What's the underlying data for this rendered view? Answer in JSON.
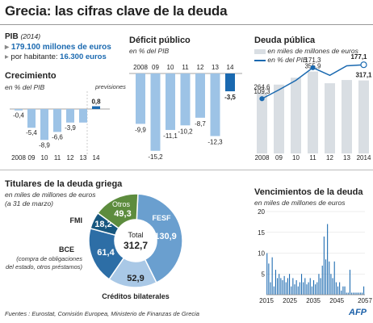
{
  "title": "Grecia: las cifras clave de la deuda",
  "pib": {
    "label": "PIB",
    "year": "(2014)",
    "line1": "179.100 millones de euros",
    "line2_prefix": "por habitante:",
    "line2_value": "16.300 euros"
  },
  "colors": {
    "bar": "#9dc3e6",
    "bar_dark": "#1a69b0",
    "grey": "#d9dee3",
    "line": "#1a69b0",
    "pie_fesf": "#6a9fcf",
    "pie_biz": "#a9c8e6",
    "pie_bce": "#2d6ea6",
    "pie_fmi": "#17577f",
    "pie_otros": "#5d8c3e",
    "pie_text": "#ffffff"
  },
  "chart_data": [
    {
      "type": "bar",
      "title": "Crecimiento",
      "subtitle": "en % del PIB",
      "note": "previsiones",
      "categories": [
        "2008",
        "09",
        "10",
        "11",
        "12",
        "13",
        "14"
      ],
      "values": [
        -0.4,
        -5.4,
        -8.9,
        -6.6,
        -3.9,
        -3.9,
        0.8
      ],
      "value_labels": [
        "-0,4",
        "-5,4",
        "-8,9",
        "-6,6",
        "-3,9",
        "",
        "0,8"
      ],
      "highlight_index": 6
    },
    {
      "type": "bar",
      "title": "Déficit público",
      "subtitle": "en % del PIB",
      "categories": [
        "2008",
        "09",
        "10",
        "11",
        "12",
        "13",
        "14"
      ],
      "values": [
        -9.9,
        -15.2,
        -11.1,
        -10.2,
        -8.7,
        -12.3,
        -3.5
      ],
      "value_labels": [
        "-9,9",
        "-15,2",
        "-11,1",
        "-10,2",
        "-8,7",
        "-12,3",
        "-3,5"
      ],
      "highlight_index": 6
    },
    {
      "type": "bar",
      "title": "Deuda pública",
      "legend": [
        "en miles de millones de euros",
        "en % del PIB"
      ],
      "categories": [
        "2008",
        "09",
        "10",
        "11",
        "12",
        "13",
        "2014"
      ],
      "series": [
        {
          "name": "en miles de millones de euros",
          "values": [
            264.6,
            299.0,
            329.0,
            355.9,
            305.0,
            319.0,
            317.1
          ]
        },
        {
          "name": "en % del PIB",
          "values": [
            109.3,
            127.0,
            146.0,
            171.3,
            156.0,
            175.0,
            177.1
          ]
        }
      ],
      "bar_labels": [
        "264,6",
        "",
        "",
        "355,9",
        "",
        "",
        "317,1"
      ],
      "line_labels": [
        "109,3",
        "",
        "",
        "171,3",
        "",
        "",
        "177,1"
      ]
    },
    {
      "type": "pie",
      "title": "Titulares de la deuda griega",
      "subtitle": [
        "en miles de millones de euros",
        "(a 31 de marzo)"
      ],
      "total_label": "Total",
      "total": "312,7",
      "slices": [
        {
          "name": "FESF",
          "value": 130.9,
          "label": "130,9"
        },
        {
          "name": "Créditos bilaterales",
          "value": 52.9,
          "label": "52,9"
        },
        {
          "name": "BCE",
          "value": 61.4,
          "label": "61,4",
          "note": [
            "(compra de obligaciones",
            "del estado,  otros préstamos)"
          ]
        },
        {
          "name": "FMI",
          "value": 18.2,
          "label": "18,2"
        },
        {
          "name": "Otros",
          "value": 49.3,
          "label": "49,3"
        }
      ]
    },
    {
      "type": "bar",
      "title": "Vencimientos de la deuda",
      "subtitle": "en miles de millones de euros",
      "x_ticks": [
        "2015",
        "2025",
        "2035",
        "2045",
        "2057"
      ],
      "y_ticks": [
        "0",
        "5",
        "10",
        "15",
        "20"
      ],
      "ylim": [
        0,
        20
      ],
      "values": [
        10,
        7.5,
        3,
        9,
        2,
        6,
        4,
        5,
        4,
        3.5,
        4.5,
        3,
        4,
        5,
        2,
        4,
        2.5,
        3.5,
        2,
        3,
        5,
        3,
        4,
        2.5,
        3,
        4,
        2,
        3.5,
        2.5,
        3,
        5,
        4,
        7,
        14,
        8.5,
        17,
        8,
        5,
        4,
        8,
        3,
        2,
        3,
        1,
        2,
        2,
        0.5,
        0.5,
        6,
        0.5,
        0.5,
        0.5,
        0.5,
        0.5,
        0.5,
        0.5,
        2
      ]
    }
  ],
  "footer": "Fuentes :  Eurostat, Comisión Europea, Ministerio de Finanzas de Grecia",
  "logo": "AFP"
}
